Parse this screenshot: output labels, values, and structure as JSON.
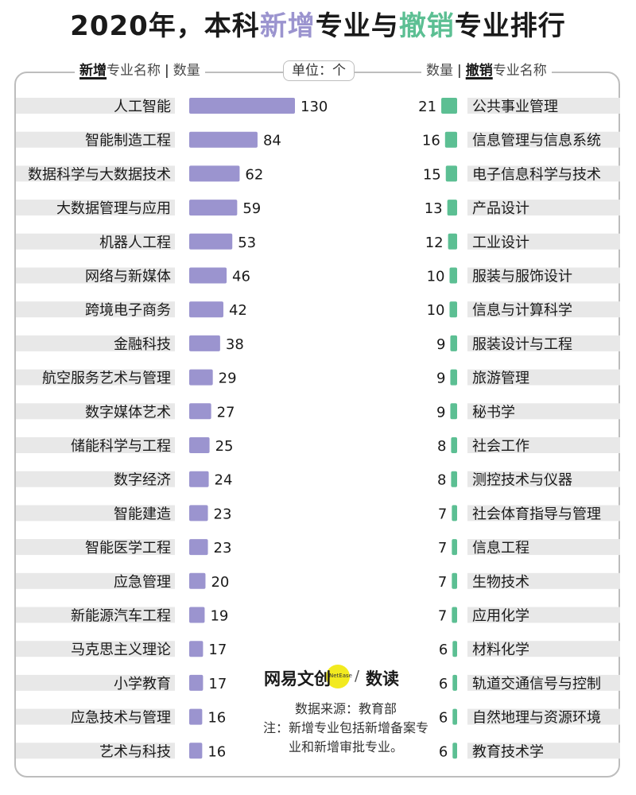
{
  "title_parts": [
    "2020年，本科",
    "新增",
    "专业与",
    "撤销",
    "专业排行"
  ],
  "header": {
    "left_highlight": "新增",
    "left_rest": "专业名称",
    "left_count": "数量",
    "unit": "单位：个",
    "right_count": "数量",
    "right_highlight": "撤销",
    "right_rest": "专业名称"
  },
  "logo": {
    "main": "网易文创",
    "small": "NetEase",
    "sep": "/",
    "sub": "数读"
  },
  "notes": {
    "source": "数据来源：教育部",
    "note": "注：新增专业包括新增备案专业和新增审批专业。"
  },
  "colors": {
    "added": "#9b94cf",
    "removed": "#5cbf93",
    "row_band": "#e8e8e8",
    "frame": "#bdbdbd"
  },
  "chart_data": [
    {
      "type": "bar",
      "orientation": "horizontal",
      "title": "新增专业",
      "categories": [
        "人工智能",
        "智能制造工程",
        "数据科学与大数据技术",
        "大数据管理与应用",
        "机器人工程",
        "网络与新媒体",
        "跨境电子商务",
        "金融科技",
        "航空服务艺术与管理",
        "数字媒体艺术",
        "储能科学与工程",
        "数字经济",
        "智能建造",
        "智能医学工程",
        "应急管理",
        "新能源汽车工程",
        "马克思主义理论",
        "小学教育",
        "应急技术与管理",
        "艺术与科技"
      ],
      "values": [
        130,
        84,
        62,
        59,
        53,
        46,
        42,
        38,
        29,
        27,
        25,
        24,
        23,
        23,
        20,
        19,
        17,
        17,
        16,
        16
      ]
    },
    {
      "type": "bar",
      "orientation": "horizontal",
      "title": "撤销专业",
      "categories": [
        "公共事业管理",
        "信息管理与信息系统",
        "电子信息科学与技术",
        "产品设计",
        "工业设计",
        "服装与服饰设计",
        "信息与计算科学",
        "服装设计与工程",
        "旅游管理",
        "秘书学",
        "社会工作",
        "测控技术与仪器",
        "社会体育指导与管理",
        "信息工程",
        "生物技术",
        "应用化学",
        "材料化学",
        "轨道交通信号与控制",
        "自然地理与资源环境",
        "教育技术学"
      ],
      "values": [
        21,
        16,
        15,
        13,
        12,
        10,
        10,
        9,
        9,
        9,
        8,
        8,
        7,
        7,
        7,
        7,
        6,
        6,
        6,
        6
      ]
    }
  ]
}
